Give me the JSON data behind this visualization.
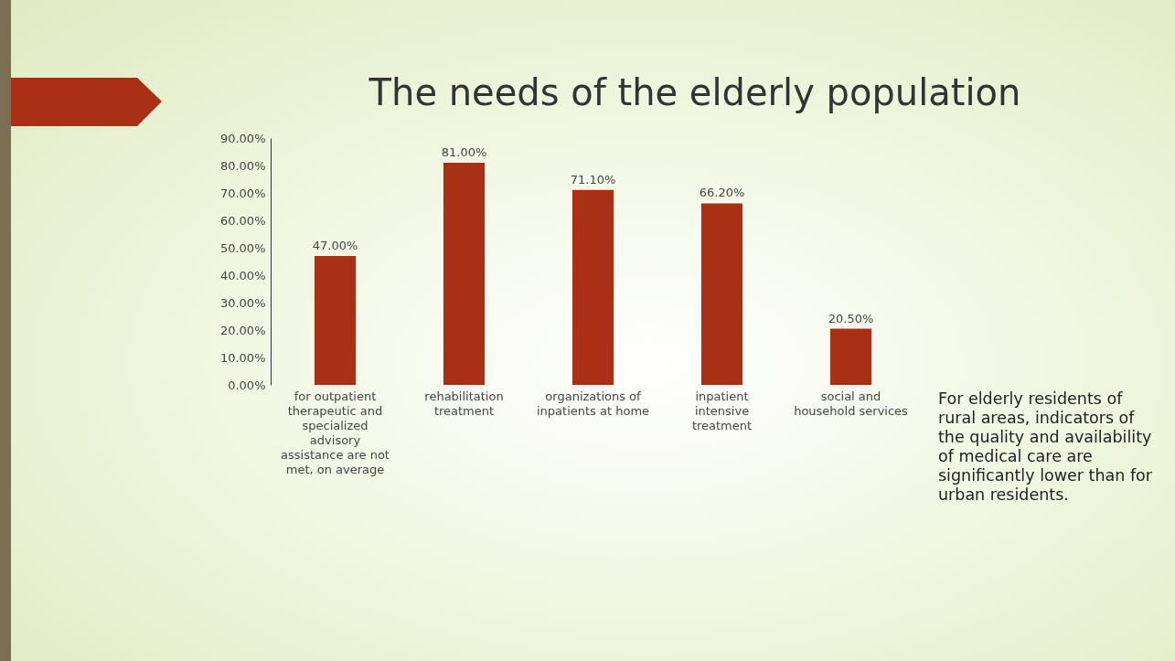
{
  "chart_data": {
    "type": "bar",
    "title": "The needs of the elderly population",
    "categories": [
      "for outpatient therapeutic and specialized advisory assistance are not met, on average",
      "rehabilitation treatment",
      "organizations of inpatients at home",
      "inpatient intensive treatment",
      "social and household services"
    ],
    "values": [
      47,
      81,
      71.1,
      66.2,
      20.5
    ],
    "value_labels": [
      "47.00%",
      "81.00%",
      "71.10%",
      "66.20%",
      "20.50%"
    ],
    "color": "#a93014",
    "ylim": [
      0,
      90
    ],
    "yticks": [
      {
        "value": 0,
        "label": "0.00%"
      },
      {
        "value": 10,
        "label": "10.00%"
      },
      {
        "value": 20,
        "label": "20.00%"
      },
      {
        "value": 30,
        "label": "30.00%"
      },
      {
        "value": 40,
        "label": "40.00%"
      },
      {
        "value": 50,
        "label": "50.00%"
      },
      {
        "value": 60,
        "label": "60.00%"
      },
      {
        "value": 70,
        "label": "70.00%"
      },
      {
        "value": 80,
        "label": "80.00%"
      },
      {
        "value": 90,
        "label": "90.00%"
      }
    ],
    "grid": false,
    "annotations": [
      "For elderly residents of rural areas, indicators of the quality and availability of medical care are significantly lower than for urban residents."
    ]
  }
}
